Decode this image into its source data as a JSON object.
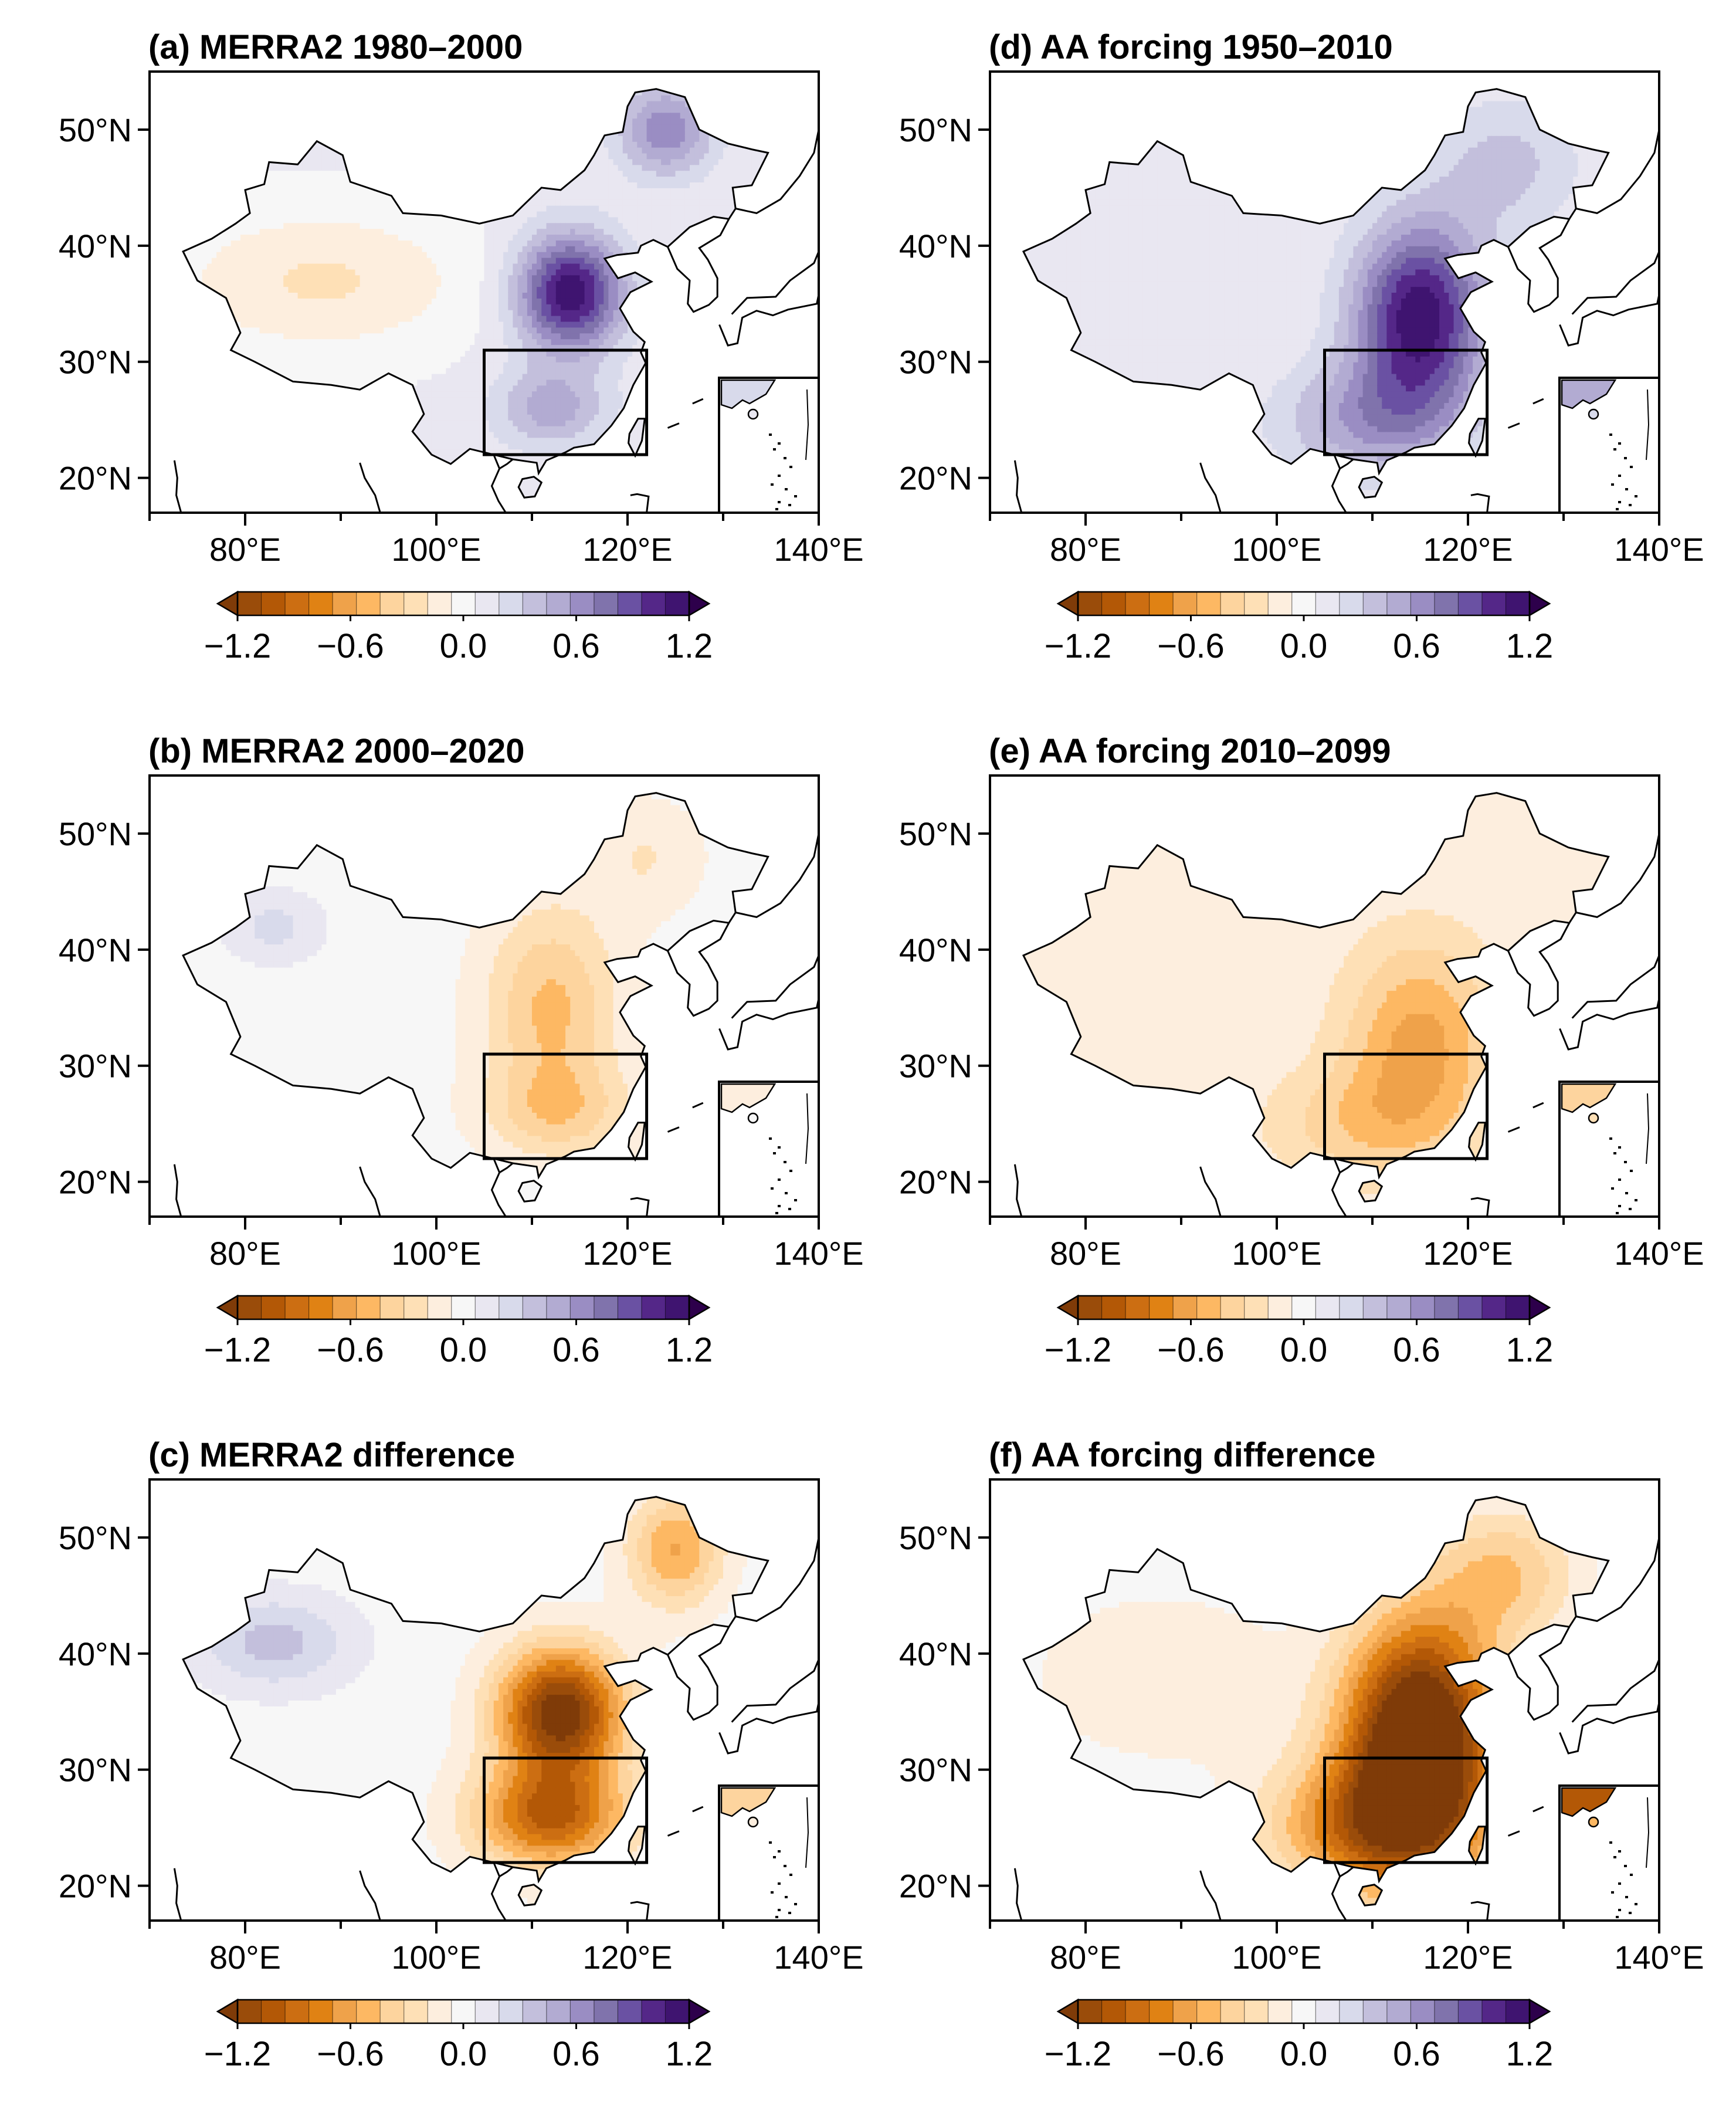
{
  "figure": {
    "panels": [
      {
        "id": "a",
        "title": "(a) MERRA2 1980–2000",
        "pattern": "merra_early"
      },
      {
        "id": "b",
        "title": "(b) MERRA2 2000–2020",
        "pattern": "merra_late"
      },
      {
        "id": "c",
        "title": "(c) MERRA2 difference",
        "pattern": "merra_diff"
      },
      {
        "id": "d",
        "title": "(d) AA forcing 1950–2010",
        "pattern": "aa_early"
      },
      {
        "id": "e",
        "title": "(e) AA forcing 2010–2099",
        "pattern": "aa_late"
      },
      {
        "id": "f",
        "title": "(f) AA forcing difference",
        "pattern": "aa_diff"
      }
    ],
    "axes": {
      "lon_range": [
        70,
        140
      ],
      "lat_range": [
        17,
        55
      ],
      "lon_ticks": [
        80,
        100,
        120,
        140
      ],
      "lon_tick_labels": [
        "80°E",
        "100°E",
        "120°E",
        "140°E"
      ],
      "lat_ticks": [
        20,
        30,
        40,
        50
      ],
      "lat_tick_labels": [
        "20°N",
        "30°N",
        "40°N",
        "50°N"
      ]
    },
    "region_box": {
      "lon": [
        105,
        122
      ],
      "lat": [
        22,
        31
      ]
    },
    "colorbar": {
      "min": -1.2,
      "max": 1.2,
      "levels": 16,
      "tick_values": [
        -1.2,
        -0.6,
        0.0,
        0.6,
        1.2
      ],
      "tick_labels": [
        "−1.2",
        "−0.6",
        "0.0",
        "0.6",
        "1.2"
      ],
      "colors": [
        "#7f3b08",
        "#9a4c0a",
        "#b35806",
        "#cc6e12",
        "#e08214",
        "#efa24a",
        "#fdb863",
        "#fdd49e",
        "#fee0b6",
        "#fdeede",
        "#f7f7f7",
        "#e9e7f1",
        "#d8daeb",
        "#c3bfdc",
        "#b2abd2",
        "#9a8dc3",
        "#8073ac",
        "#6a51a3",
        "#542788",
        "#3f1470",
        "#2d004b"
      ]
    }
  }
}
